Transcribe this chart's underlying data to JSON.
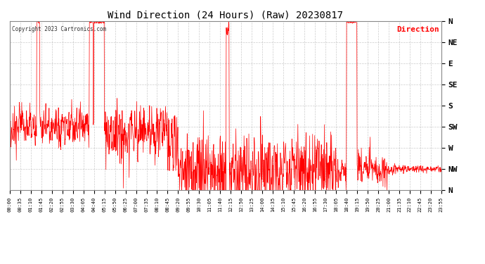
{
  "title": "Wind Direction (24 Hours) (Raw) 20230817",
  "copyright": "Copyright 2023 Cartronics.com",
  "legend_label": "Direction",
  "legend_color": "#ff0000",
  "line_color": "#ff0000",
  "background_color": "#ffffff",
  "grid_color": "#aaaaaa",
  "ytick_labels": [
    "N",
    "NW",
    "W",
    "SW",
    "S",
    "SE",
    "E",
    "NE",
    "N"
  ],
  "ytick_values": [
    360,
    315,
    270,
    225,
    180,
    135,
    90,
    45,
    0
  ],
  "ylim": [
    0,
    360
  ],
  "yinvert": true,
  "xlim_minutes": [
    0,
    1435
  ],
  "xtick_step_minutes": 35,
  "xtick_labels": [
    "00:00",
    "00:35",
    "01:10",
    "01:45",
    "02:20",
    "02:55",
    "03:30",
    "04:05",
    "04:40",
    "05:15",
    "05:50",
    "06:25",
    "07:00",
    "07:35",
    "08:10",
    "08:45",
    "09:20",
    "09:55",
    "10:30",
    "11:05",
    "11:40",
    "12:15",
    "12:50",
    "13:25",
    "14:00",
    "14:35",
    "15:10",
    "15:45",
    "16:20",
    "16:55",
    "17:30",
    "18:05",
    "18:40",
    "19:15",
    "19:50",
    "20:25",
    "21:00",
    "21:35",
    "22:10",
    "22:45",
    "23:20",
    "23:55"
  ],
  "figsize": [
    6.9,
    3.75
  ],
  "dpi": 100
}
